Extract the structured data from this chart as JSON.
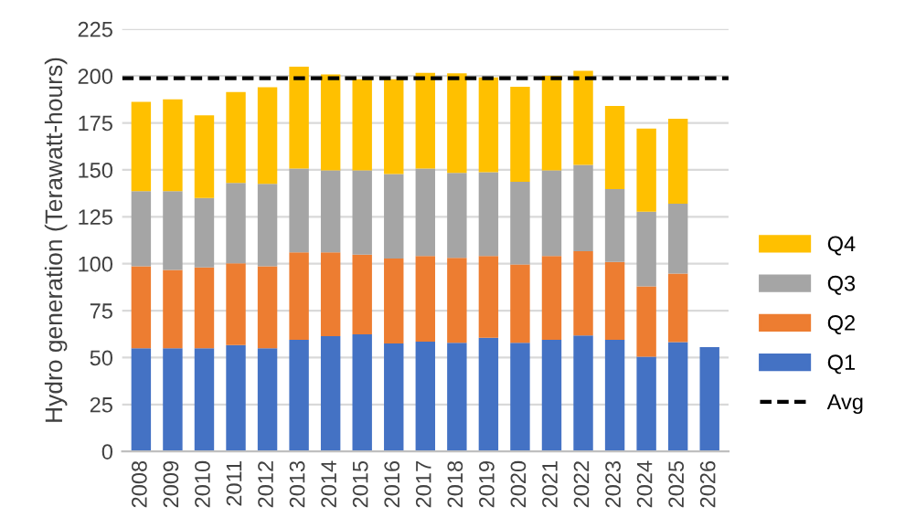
{
  "chart_data": {
    "type": "bar",
    "stacked": true,
    "ylabel": "Hydro generation (Terawatt-hours)",
    "categories": [
      "2008",
      "2009",
      "2010",
      "2011",
      "2012",
      "2013",
      "2014",
      "2015",
      "2016",
      "2017",
      "2018",
      "2019",
      "2020",
      "2021",
      "2022",
      "2023",
      "2024",
      "2025",
      "2026"
    ],
    "series": [
      {
        "name": "Q1",
        "color": "#4472c4",
        "values": [
          55,
          55,
          55,
          56.6,
          55,
          59.5,
          61.4,
          62.4,
          57.5,
          58.5,
          57.9,
          60.5,
          57.9,
          59.5,
          61.8,
          59.5,
          50.4,
          58.2,
          55.6
        ]
      },
      {
        "name": "Q2",
        "color": "#ed7d31",
        "values": [
          43.6,
          41.7,
          43,
          43.6,
          43.6,
          46.5,
          44.6,
          42.4,
          45.3,
          45.6,
          45.2,
          43.6,
          41.7,
          44.6,
          44.9,
          41.4,
          37.5,
          36.5,
          null
        ]
      },
      {
        "name": "Q3",
        "color": "#a5a5a5",
        "values": [
          40.1,
          42,
          37,
          42.8,
          44,
          44.7,
          43.7,
          44.9,
          45,
          46.6,
          45.3,
          44.6,
          44,
          45.6,
          45.9,
          38.8,
          39.8,
          37.2,
          null
        ]
      },
      {
        "name": "Q4",
        "color": "#ffc000",
        "values": [
          47.5,
          48.8,
          44,
          48.4,
          51.4,
          54.3,
          51.1,
          48.5,
          50.4,
          51,
          53,
          50.5,
          50.7,
          50.4,
          50.1,
          44.3,
          44.3,
          45.3,
          null
        ]
      }
    ],
    "ref_lines": [
      {
        "axis": "y",
        "value": 198.8,
        "label": "Avg",
        "color": "#000000",
        "line_style": "dashed"
      }
    ],
    "ylim": [
      0,
      225
    ],
    "yticks": [
      0,
      25,
      50,
      75,
      100,
      125,
      150,
      175,
      200,
      225
    ],
    "grid": "y",
    "legend": "right"
  }
}
